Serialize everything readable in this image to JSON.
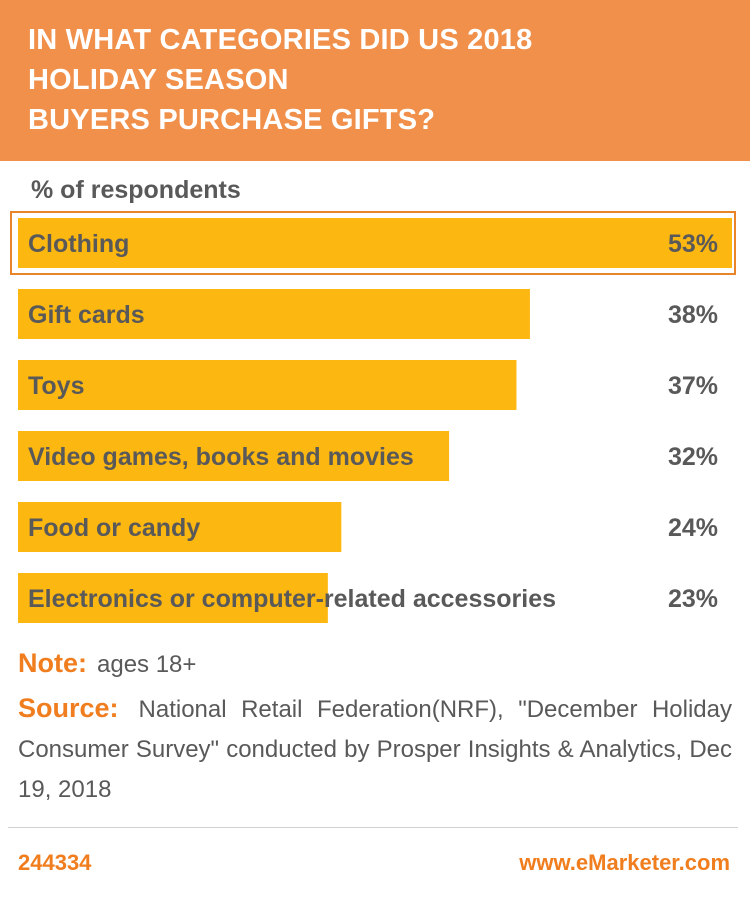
{
  "header": {
    "title_lines": [
      "IN WHAT CATEGORIES DID US 2018",
      "HOLIDAY SEASON",
      "BUYERS PURCHASE GIFTS?"
    ]
  },
  "subtitle": "% of respondents",
  "chart_data": {
    "type": "bar",
    "orientation": "horizontal",
    "title": "IN WHAT CATEGORIES DID US 2018 HOLIDAY SEASON BUYERS PURCHASE GIFTS?",
    "subtitle": "% of respondents",
    "categories": [
      "Clothing",
      "Gift cards",
      "Toys",
      "Video games, books and movies",
      "Food or candy",
      "Electronics or computer-related accessories"
    ],
    "values": [
      53,
      38,
      37,
      32,
      24,
      23
    ],
    "value_labels": [
      "53%",
      "38%",
      "37%",
      "32%",
      "24%",
      "23%"
    ],
    "highlighted_category": "Clothing",
    "xlim": [
      0,
      53
    ],
    "grid": false,
    "legend": "none"
  },
  "notes": {
    "note_label": "Note:",
    "note_text": "ages 18+",
    "source_label": "Source:",
    "source_text": "National Retail Federation(NRF), \"December Holiday Consumer Survey\" conducted by Prosper Insights & Analytics, Dec 19, 2018"
  },
  "footer": {
    "id": "244334",
    "url": "www.eMarketer.com"
  },
  "colors": {
    "header_bg": "#f0904a",
    "bar": "#fcb711",
    "highlight_border": "#e8842a",
    "accent_text": "#f07d1e",
    "body_text": "#595959"
  }
}
